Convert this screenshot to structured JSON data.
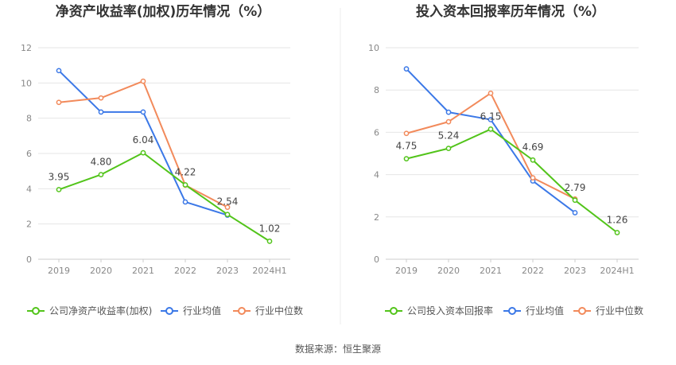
{
  "footer": {
    "source": "数据来源：恒生聚源"
  },
  "chart_data": [
    {
      "type": "line",
      "title": "净资产收益率(加权)历年情况（%）",
      "categories": [
        "2019",
        "2020",
        "2021",
        "2022",
        "2023",
        "2024H1"
      ],
      "ylim": [
        0,
        12
      ],
      "yticks": [
        0,
        2,
        4,
        6,
        8,
        10,
        12
      ],
      "grid": true,
      "legend_position": "bottom",
      "series": [
        {
          "name": "公司净资产收益率(加权)",
          "color": "#52c41a",
          "values": [
            3.95,
            4.8,
            6.04,
            4.22,
            2.54,
            1.02
          ],
          "labels": [
            "3.95",
            "4.80",
            "6.04",
            "4.22",
            "2.54",
            "1.02"
          ]
        },
        {
          "name": "行业均值",
          "color": "#3b78e7",
          "values": [
            10.7,
            8.35,
            8.35,
            3.25,
            2.5,
            null
          ]
        },
        {
          "name": "行业中位数",
          "color": "#f28a5b",
          "values": [
            8.9,
            9.15,
            10.1,
            4.2,
            2.95,
            null
          ]
        }
      ]
    },
    {
      "type": "line",
      "title": "投入资本回报率历年情况（%）",
      "categories": [
        "2019",
        "2020",
        "2021",
        "2022",
        "2023",
        "2024H1"
      ],
      "ylim": [
        0,
        10
      ],
      "yticks": [
        0,
        2,
        4,
        6,
        8,
        10
      ],
      "grid": true,
      "legend_position": "bottom",
      "series": [
        {
          "name": "公司投入资本回报率",
          "color": "#52c41a",
          "values": [
            4.75,
            5.24,
            6.15,
            4.69,
            2.79,
            1.26
          ],
          "labels": [
            "4.75",
            "5.24",
            "6.15",
            "4.69",
            "2.79",
            "1.26"
          ]
        },
        {
          "name": "行业均值",
          "color": "#3b78e7",
          "values": [
            9.0,
            6.95,
            6.6,
            3.7,
            2.2,
            null
          ]
        },
        {
          "name": "行业中位数",
          "color": "#f28a5b",
          "values": [
            5.95,
            6.5,
            7.85,
            3.85,
            2.85,
            null
          ]
        }
      ]
    }
  ]
}
